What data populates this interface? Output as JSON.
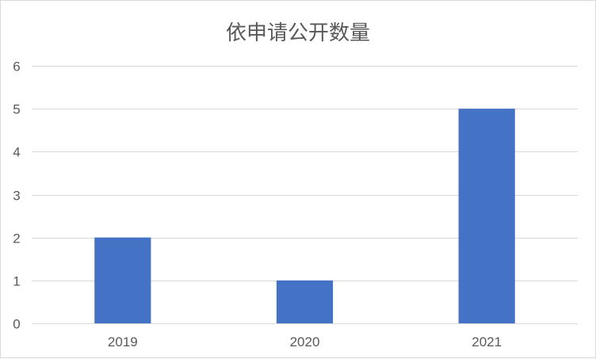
{
  "chart_data": {
    "type": "bar",
    "title": "依申请公开数量",
    "categories": [
      "2019",
      "2020",
      "2021"
    ],
    "values": [
      2,
      1,
      5
    ],
    "xlabel": "",
    "ylabel": "",
    "ylim": [
      0,
      6
    ],
    "yticks": [
      0,
      1,
      2,
      3,
      4,
      5,
      6
    ],
    "grid": true,
    "legend": "none",
    "colors": {
      "bar": "#4472c4",
      "grid": "#d9d9d9",
      "text": "#595959"
    }
  }
}
